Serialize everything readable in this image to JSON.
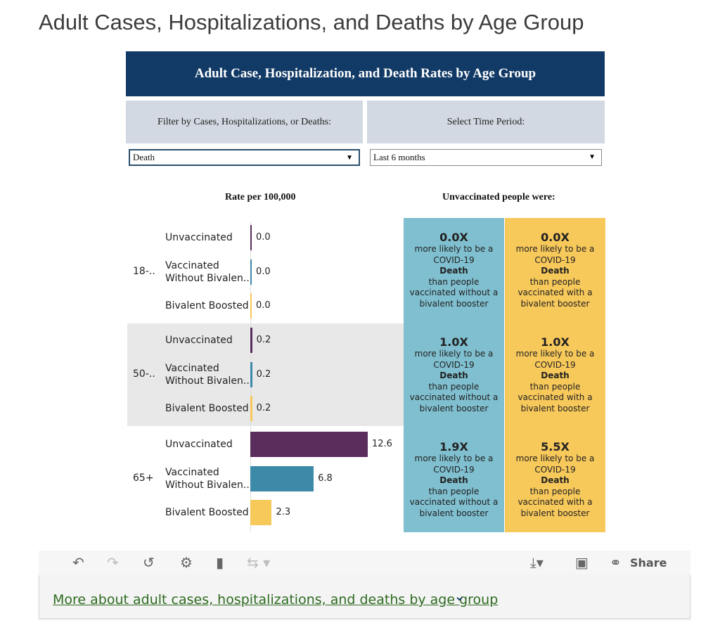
{
  "page_title": "Adult Cases, Hospitalizations, and Deaths by Age Group",
  "dashboard": {
    "header": "Adult Case, Hospitalization, and Death Rates by Age Group",
    "filter_label": "Filter by Cases, Hospitalizations, or Deaths:",
    "time_label": "Select Time Period:",
    "filter_value": "Death",
    "time_value": "Last 6 months",
    "rate_heading": "Rate per 100,000",
    "unvax_heading": "Unvaccinated people were:"
  },
  "colors": {
    "unvaccinated": "#5a2d5c",
    "vaccinated_without_bivalent": "#3c8aa8",
    "bivalent_boosted": "#f7c85a",
    "card_blue": "#7fbfcf",
    "card_yellow": "#f7c85a",
    "header_bg": "#123a66"
  },
  "chart_data": {
    "type": "bar",
    "title": "Rate per 100,000",
    "groups": [
      {
        "age": "18-..",
        "rows": [
          {
            "label": "Unvaccinated",
            "value": 0.0,
            "display": "0.0"
          },
          {
            "label": "Vaccinated Without Bivalen..",
            "value": 0.0,
            "display": "0.0"
          },
          {
            "label": "Bivalent Boosted",
            "value": 0.0,
            "display": "0.0"
          }
        ],
        "ratios": [
          {
            "ratio": "0.0X",
            "comparison": "vaccinated without a bivalent booster"
          },
          {
            "ratio": "0.0X",
            "comparison": "vaccinated with a bivalent booster"
          }
        ]
      },
      {
        "age": "50-..",
        "rows": [
          {
            "label": "Unvaccinated",
            "value": 0.2,
            "display": "0.2"
          },
          {
            "label": "Vaccinated Without Bivalen..",
            "value": 0.2,
            "display": "0.2"
          },
          {
            "label": "Bivalent Boosted",
            "value": 0.2,
            "display": "0.2"
          }
        ],
        "ratios": [
          {
            "ratio": "1.0X",
            "comparison": "vaccinated without a bivalent booster"
          },
          {
            "ratio": "1.0X",
            "comparison": "vaccinated with a bivalent booster"
          }
        ]
      },
      {
        "age": "65+",
        "rows": [
          {
            "label": "Unvaccinated",
            "value": 12.6,
            "display": "12.6"
          },
          {
            "label": "Vaccinated Without Bivalen..",
            "value": 6.8,
            "display": "6.8"
          },
          {
            "label": "Bivalent Boosted",
            "value": 2.3,
            "display": "2.3"
          }
        ],
        "ratios": [
          {
            "ratio": "1.9X",
            "comparison": "vaccinated without a bivalent booster"
          },
          {
            "ratio": "5.5X",
            "comparison": "vaccinated with a bivalent booster"
          }
        ]
      }
    ],
    "card_text": {
      "line1": "more likely to be a",
      "line2": "COVID-19",
      "measure": "Death",
      "line4": "than people"
    },
    "xlim": [
      0,
      12.6
    ],
    "grid": false
  },
  "toolbar": {
    "share_label": "Share",
    "icons": [
      "undo-icon",
      "redo-icon",
      "revert-icon",
      "refresh-data-icon",
      "pause-updates-icon",
      "alerts-icon",
      "download-icon",
      "fullscreen-icon",
      "share-icon"
    ]
  },
  "more_link": "More about adult cases, hospitalizations, and deaths by age group"
}
